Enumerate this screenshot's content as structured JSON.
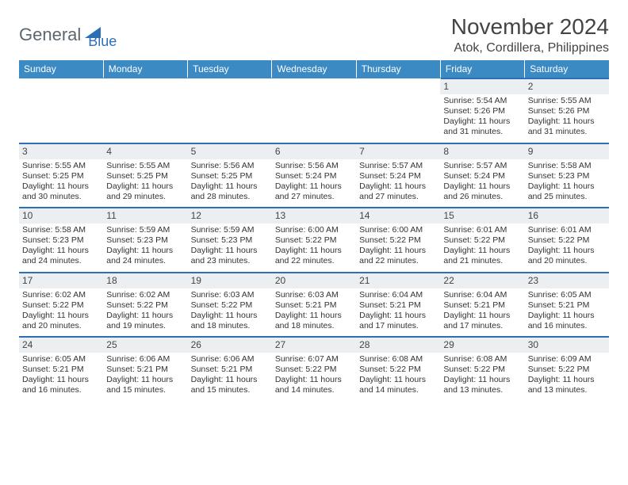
{
  "logo": {
    "general": "General",
    "blue": "Blue"
  },
  "title": {
    "month": "November 2024",
    "location": "Atok, Cordillera, Philippines"
  },
  "style": {
    "header_bg": "#3b8ac4",
    "header_fg": "#ffffff",
    "row_accent": "#2d6fb6",
    "daynum_bg": "#eceff2",
    "body_bg": "#ffffff",
    "text_color": "#333333",
    "font_family": "Arial",
    "cell_font_size": 10.5,
    "header_font_size": 12,
    "title_font_size": 28,
    "location_font_size": 16
  },
  "days": [
    "Sunday",
    "Monday",
    "Tuesday",
    "Wednesday",
    "Thursday",
    "Friday",
    "Saturday"
  ],
  "weeks": [
    [
      {
        "n": "",
        "lines": []
      },
      {
        "n": "",
        "lines": []
      },
      {
        "n": "",
        "lines": []
      },
      {
        "n": "",
        "lines": []
      },
      {
        "n": "",
        "lines": []
      },
      {
        "n": "1",
        "lines": [
          "Sunrise: 5:54 AM",
          "Sunset: 5:26 PM",
          "Daylight: 11 hours and 31 minutes."
        ]
      },
      {
        "n": "2",
        "lines": [
          "Sunrise: 5:55 AM",
          "Sunset: 5:26 PM",
          "Daylight: 11 hours and 31 minutes."
        ]
      }
    ],
    [
      {
        "n": "3",
        "lines": [
          "Sunrise: 5:55 AM",
          "Sunset: 5:25 PM",
          "Daylight: 11 hours and 30 minutes."
        ]
      },
      {
        "n": "4",
        "lines": [
          "Sunrise: 5:55 AM",
          "Sunset: 5:25 PM",
          "Daylight: 11 hours and 29 minutes."
        ]
      },
      {
        "n": "5",
        "lines": [
          "Sunrise: 5:56 AM",
          "Sunset: 5:25 PM",
          "Daylight: 11 hours and 28 minutes."
        ]
      },
      {
        "n": "6",
        "lines": [
          "Sunrise: 5:56 AM",
          "Sunset: 5:24 PM",
          "Daylight: 11 hours and 27 minutes."
        ]
      },
      {
        "n": "7",
        "lines": [
          "Sunrise: 5:57 AM",
          "Sunset: 5:24 PM",
          "Daylight: 11 hours and 27 minutes."
        ]
      },
      {
        "n": "8",
        "lines": [
          "Sunrise: 5:57 AM",
          "Sunset: 5:24 PM",
          "Daylight: 11 hours and 26 minutes."
        ]
      },
      {
        "n": "9",
        "lines": [
          "Sunrise: 5:58 AM",
          "Sunset: 5:23 PM",
          "Daylight: 11 hours and 25 minutes."
        ]
      }
    ],
    [
      {
        "n": "10",
        "lines": [
          "Sunrise: 5:58 AM",
          "Sunset: 5:23 PM",
          "Daylight: 11 hours and 24 minutes."
        ]
      },
      {
        "n": "11",
        "lines": [
          "Sunrise: 5:59 AM",
          "Sunset: 5:23 PM",
          "Daylight: 11 hours and 24 minutes."
        ]
      },
      {
        "n": "12",
        "lines": [
          "Sunrise: 5:59 AM",
          "Sunset: 5:23 PM",
          "Daylight: 11 hours and 23 minutes."
        ]
      },
      {
        "n": "13",
        "lines": [
          "Sunrise: 6:00 AM",
          "Sunset: 5:22 PM",
          "Daylight: 11 hours and 22 minutes."
        ]
      },
      {
        "n": "14",
        "lines": [
          "Sunrise: 6:00 AM",
          "Sunset: 5:22 PM",
          "Daylight: 11 hours and 22 minutes."
        ]
      },
      {
        "n": "15",
        "lines": [
          "Sunrise: 6:01 AM",
          "Sunset: 5:22 PM",
          "Daylight: 11 hours and 21 minutes."
        ]
      },
      {
        "n": "16",
        "lines": [
          "Sunrise: 6:01 AM",
          "Sunset: 5:22 PM",
          "Daylight: 11 hours and 20 minutes."
        ]
      }
    ],
    [
      {
        "n": "17",
        "lines": [
          "Sunrise: 6:02 AM",
          "Sunset: 5:22 PM",
          "Daylight: 11 hours and 20 minutes."
        ]
      },
      {
        "n": "18",
        "lines": [
          "Sunrise: 6:02 AM",
          "Sunset: 5:22 PM",
          "Daylight: 11 hours and 19 minutes."
        ]
      },
      {
        "n": "19",
        "lines": [
          "Sunrise: 6:03 AM",
          "Sunset: 5:22 PM",
          "Daylight: 11 hours and 18 minutes."
        ]
      },
      {
        "n": "20",
        "lines": [
          "Sunrise: 6:03 AM",
          "Sunset: 5:21 PM",
          "Daylight: 11 hours and 18 minutes."
        ]
      },
      {
        "n": "21",
        "lines": [
          "Sunrise: 6:04 AM",
          "Sunset: 5:21 PM",
          "Daylight: 11 hours and 17 minutes."
        ]
      },
      {
        "n": "22",
        "lines": [
          "Sunrise: 6:04 AM",
          "Sunset: 5:21 PM",
          "Daylight: 11 hours and 17 minutes."
        ]
      },
      {
        "n": "23",
        "lines": [
          "Sunrise: 6:05 AM",
          "Sunset: 5:21 PM",
          "Daylight: 11 hours and 16 minutes."
        ]
      }
    ],
    [
      {
        "n": "24",
        "lines": [
          "Sunrise: 6:05 AM",
          "Sunset: 5:21 PM",
          "Daylight: 11 hours and 16 minutes."
        ]
      },
      {
        "n": "25",
        "lines": [
          "Sunrise: 6:06 AM",
          "Sunset: 5:21 PM",
          "Daylight: 11 hours and 15 minutes."
        ]
      },
      {
        "n": "26",
        "lines": [
          "Sunrise: 6:06 AM",
          "Sunset: 5:21 PM",
          "Daylight: 11 hours and 15 minutes."
        ]
      },
      {
        "n": "27",
        "lines": [
          "Sunrise: 6:07 AM",
          "Sunset: 5:22 PM",
          "Daylight: 11 hours and 14 minutes."
        ]
      },
      {
        "n": "28",
        "lines": [
          "Sunrise: 6:08 AM",
          "Sunset: 5:22 PM",
          "Daylight: 11 hours and 14 minutes."
        ]
      },
      {
        "n": "29",
        "lines": [
          "Sunrise: 6:08 AM",
          "Sunset: 5:22 PM",
          "Daylight: 11 hours and 13 minutes."
        ]
      },
      {
        "n": "30",
        "lines": [
          "Sunrise: 6:09 AM",
          "Sunset: 5:22 PM",
          "Daylight: 11 hours and 13 minutes."
        ]
      }
    ]
  ]
}
